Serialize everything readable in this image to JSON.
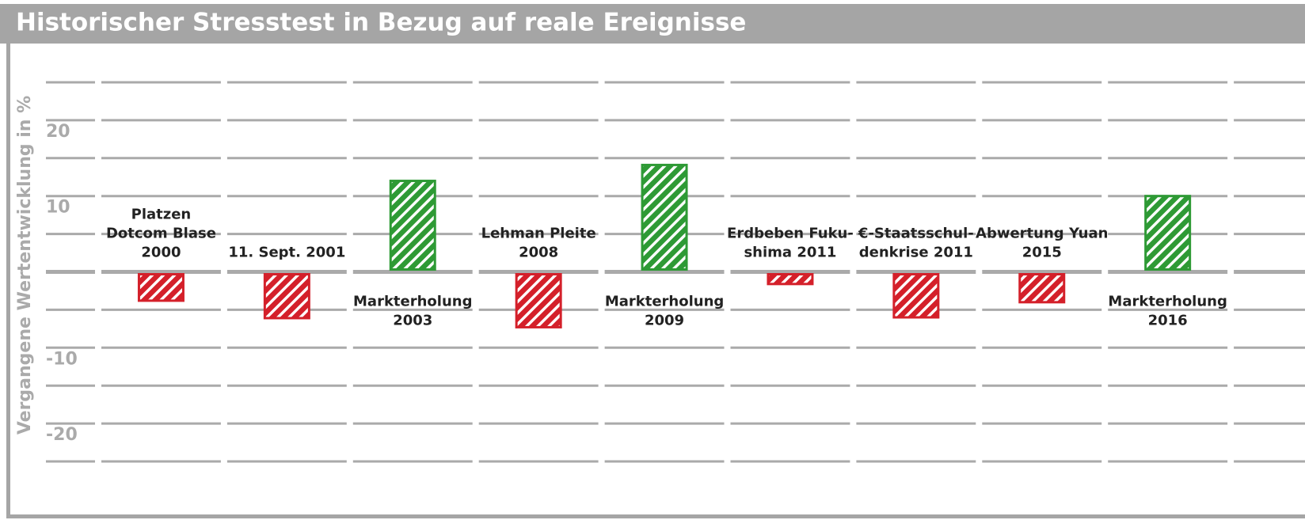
{
  "chart_data": {
    "type": "bar",
    "title": "Historischer Stresstest in Bezug auf reale Ereignisse",
    "y_label": "Vergangene Wertentwicklung in %",
    "categories": [
      "Platzen\nDotcom Blase\n2000",
      "11. Sept. 2001",
      "Markterholung\n2003",
      "Lehman Pleite\n2008",
      "Markterholung\n2009",
      "Erdbeben Fuku-\nshima 2011",
      "€-Staatsschul-\ndenkrise 2011",
      "Abwertung Yuan\n2015",
      "Markterholung\n2016"
    ],
    "values": [
      -3.8,
      -6.1,
      12.0,
      -7.3,
      14.1,
      -1.6,
      -6.0,
      -4.0,
      10.0
    ],
    "positive_color": "#2e9a35",
    "negative_color": "#d4202a",
    "ylim": [
      -25,
      25
    ],
    "yticks": [
      -20,
      -10,
      10,
      20
    ],
    "ygrid": [
      -25,
      -20,
      -15,
      -10,
      -5,
      0,
      5,
      10,
      15,
      20,
      25
    ],
    "grid": true
  }
}
